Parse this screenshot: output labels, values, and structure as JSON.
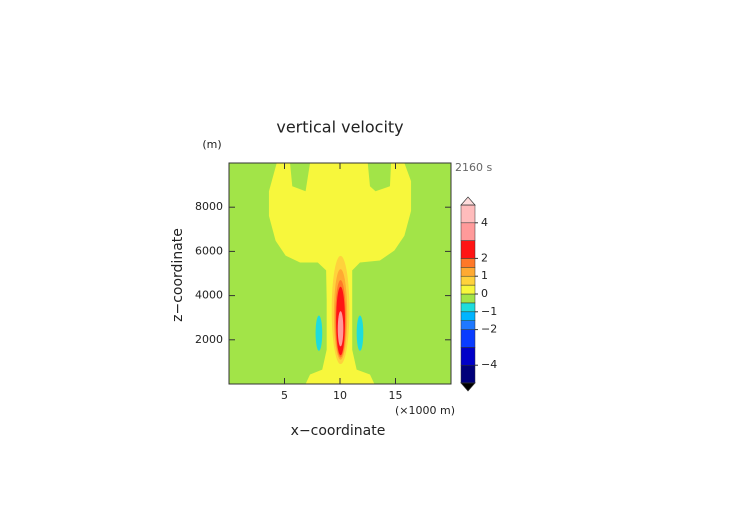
{
  "chart_data": {
    "type": "contour",
    "title": "vertical velocity",
    "y_unit": "(m)",
    "time_label": "2160 s",
    "xlabel": "x−coordinate",
    "x_unit": "(×1000 m)",
    "ylabel": "z−coordinate",
    "xlim": [
      0,
      20
    ],
    "ylim": [
      0,
      10000
    ],
    "xticks": [
      5,
      10,
      15
    ],
    "yticks": [
      2000,
      4000,
      6000,
      8000
    ],
    "levels": [
      -5,
      -4,
      -3,
      -2,
      -1.5,
      -1,
      -0.5,
      0,
      0.5,
      1,
      1.5,
      2,
      3,
      4,
      5
    ],
    "colors": [
      "#00007a",
      "#0000c8",
      "#0a3cff",
      "#1e78ff",
      "#00b4ff",
      "#1edcdc",
      "#a2e448",
      "#f7f73c",
      "#ffd23c",
      "#ffaa32",
      "#ff7828",
      "#ff1414",
      "#ff9a9a",
      "#ffbcbc"
    ],
    "colorbar_ticks": [
      4,
      2,
      1,
      0,
      {
        "value": -1,
        "label": "−1"
      },
      {
        "value": -2,
        "label": "−2"
      },
      {
        "value": -4,
        "label": "−4"
      }
    ],
    "background_level": -0.5,
    "regions": [
      {
        "level": 0,
        "x": [
          6.9,
          7.3,
          8.4,
          8.8,
          8.8,
          8.75,
          8.0,
          6.4,
          5.1,
          4.2,
          3.6,
          3.6,
          4.3,
          5.5,
          5.7,
          6.9,
          7.3,
          12.5,
          12.7,
          13.2,
          14.5,
          14.6,
          15.8,
          16.4,
          16.4,
          15.8,
          14.9,
          13.6,
          11.8,
          11.1,
          11.1,
          11.1,
          11.5,
          12.7,
          13.1
        ],
        "z": [
          0,
          430,
          650,
          1550,
          3790,
          5140,
          5500,
          5500,
          5810,
          6480,
          7600,
          8720,
          10000,
          10000,
          8950,
          8720,
          10000,
          10000,
          8950,
          8720,
          8950,
          10000,
          10000,
          9180,
          7830,
          6710,
          6040,
          5590,
          5500,
          5140,
          3790,
          1550,
          650,
          430,
          0
        ]
      }
    ],
    "ellipses": [
      {
        "level": -1,
        "cx": 8.1,
        "cz": 2300,
        "rx": 0.3,
        "rz": 800
      },
      {
        "level": -1,
        "cx": 11.8,
        "cz": 2300,
        "rx": 0.3,
        "rz": 800
      },
      {
        "level": 0.5,
        "cx": 10.05,
        "cz": 3350,
        "rx": 0.8,
        "rz": 2450
      },
      {
        "level": 1,
        "cx": 10.05,
        "cz": 3150,
        "rx": 0.6,
        "rz": 2050
      },
      {
        "level": 1.5,
        "cx": 10.05,
        "cz": 2950,
        "rx": 0.48,
        "rz": 1750
      },
      {
        "level": 2,
        "cx": 10.05,
        "cz": 2850,
        "rx": 0.4,
        "rz": 1550
      },
      {
        "level": 3,
        "cx": 10.05,
        "cz": 2500,
        "rx": 0.25,
        "rz": 800
      }
    ]
  }
}
